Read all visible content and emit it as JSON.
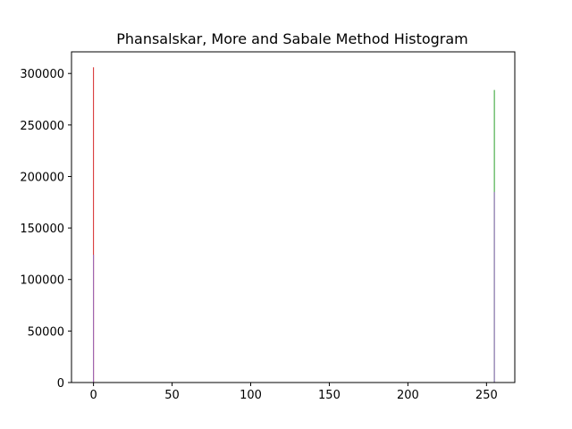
{
  "chart_data": {
    "type": "bar",
    "title": "Phansalskar, More and Sabale Method Histogram",
    "xlabel": "",
    "ylabel": "",
    "xlim": [
      -14,
      268
    ],
    "ylim": [
      0,
      321000
    ],
    "x_ticks": [
      0,
      50,
      100,
      150,
      200,
      250
    ],
    "y_ticks": [
      0,
      50000,
      100000,
      150000,
      200000,
      250000,
      300000
    ],
    "grid": false,
    "legend": "none",
    "series": [
      {
        "color": "#2ca02c",
        "points": [
          {
            "x": 255,
            "value": 284000
          }
        ]
      },
      {
        "color": "#d62728",
        "points": [
          {
            "x": 0,
            "value": 306000
          }
        ]
      },
      {
        "color": "#9467bd",
        "points": [
          {
            "x": 0,
            "value": 124000
          },
          {
            "x": 255,
            "value": 185000
          }
        ]
      }
    ]
  }
}
